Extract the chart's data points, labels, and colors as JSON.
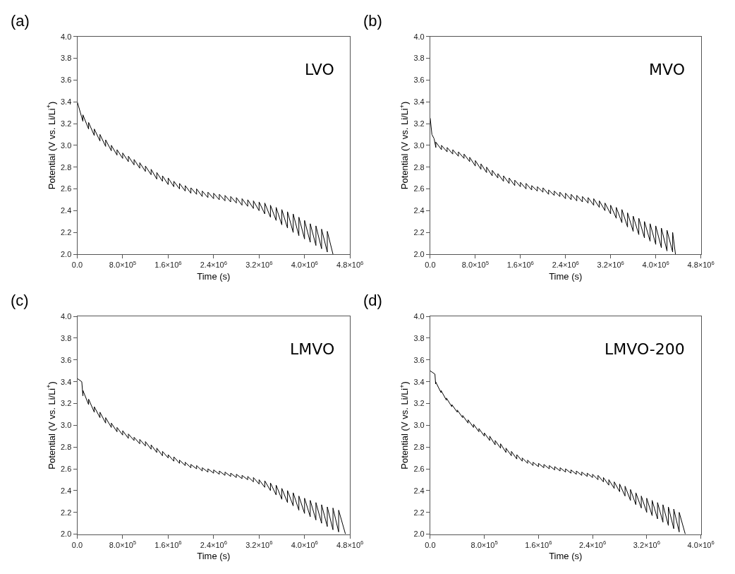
{
  "chart_data": [
    {
      "type": "line",
      "title": "(a)",
      "xlabel": "Time (s)",
      "ylabel": "Potential (V vs. Li/Li$^{+}$)",
      "xlim": [
        0,
        4800000
      ],
      "ylim": [
        2.0,
        4.0
      ],
      "xticks": [
        {
          "value": 0,
          "label": "0.0"
        },
        {
          "value": 800000,
          "label": "8.0×10$^{5}$"
        },
        {
          "value": 1600000,
          "label": "1.6×10$^{6}$"
        },
        {
          "value": 2400000,
          "label": "2.4×10$^{6}$"
        },
        {
          "value": 3200000,
          "label": "3.2×10$^{6}$"
        },
        {
          "value": 4000000,
          "label": "4.0×10$^{6}$"
        },
        {
          "value": 4800000,
          "label": "4.8×10$^{6}$"
        }
      ],
      "yticks": [
        {
          "value": 2.0,
          "label": "2.0"
        },
        2.2,
        2.4,
        2.6,
        2.8,
        {
          "value": 3.0,
          "label": "3.0"
        },
        3.2,
        3.4,
        3.6,
        3.8,
        {
          "value": 4.0,
          "label": "4.0"
        }
      ],
      "series": [
        {
          "name": "LVO",
          "color": "#000000",
          "x": [
            0,
            100000.0,
            100000.0,
            200000.0,
            200000.0,
            300000.0,
            300000.0,
            400000.0,
            400000.0,
            500000.0,
            500000.0,
            600000.0,
            600000.0,
            700000.0,
            700000.0,
            800000.0,
            800000.0,
            900000.0,
            900000.0,
            1000000.0,
            1000000.0,
            1100000.0,
            1100000.0,
            1200000.0,
            1200000.0,
            1300000.0,
            1300000.0,
            1400000.0,
            1400000.0,
            1500000.0,
            1500000.0,
            1600000.0,
            1600000.0,
            1700000.0,
            1700000.0,
            1800000.0,
            1800000.0,
            1900000.0,
            1900000.0,
            2000000.0,
            2000000.0,
            2100000.0,
            2100000.0,
            2200000.0,
            2200000.0,
            2300000.0,
            2300000.0,
            2400000.0,
            2400000.0,
            2500000.0,
            2500000.0,
            2600000.0,
            2600000.0,
            2700000.0,
            2700000.0,
            2800000.0,
            2800000.0,
            2900000.0,
            2900000.0,
            3000000.0,
            3000000.0,
            3100000.0,
            3100000.0,
            3200000.0,
            3200000.0,
            3300000.0,
            3300000.0,
            3400000.0,
            3400000.0,
            3500000.0,
            3500000.0,
            3600000.0,
            3600000.0,
            3700000.0,
            3700000.0,
            3800000.0,
            3800000.0,
            3900000.0,
            3900000.0,
            4000000.0,
            4000000.0,
            4100000.0,
            4100000.0,
            4200000.0,
            4200000.0,
            4300000.0,
            4300000.0,
            4400000.0,
            4400000.0,
            4500000.0
          ],
          "values": [
            3.4,
            3.22,
            3.28,
            3.15,
            3.21,
            3.09,
            3.15,
            3.04,
            3.1,
            2.99,
            3.05,
            2.95,
            3.0,
            2.91,
            2.96,
            2.88,
            2.93,
            2.85,
            2.9,
            2.82,
            2.87,
            2.79,
            2.84,
            2.76,
            2.81,
            2.73,
            2.78,
            2.69,
            2.75,
            2.67,
            2.72,
            2.64,
            2.7,
            2.62,
            2.67,
            2.6,
            2.65,
            2.58,
            2.63,
            2.56,
            2.61,
            2.55,
            2.6,
            2.53,
            2.58,
            2.52,
            2.57,
            2.51,
            2.56,
            2.5,
            2.55,
            2.49,
            2.54,
            2.48,
            2.53,
            2.47,
            2.52,
            2.45,
            2.51,
            2.44,
            2.5,
            2.42,
            2.49,
            2.4,
            2.48,
            2.37,
            2.47,
            2.34,
            2.45,
            2.31,
            2.43,
            2.27,
            2.41,
            2.24,
            2.39,
            2.2,
            2.37,
            2.17,
            2.34,
            2.14,
            2.31,
            2.11,
            2.28,
            2.08,
            2.26,
            2.05,
            2.23,
            2.02,
            2.21,
            2.0
          ]
        }
      ]
    },
    {
      "type": "line",
      "title": "(b)",
      "xlabel": "Time (s)",
      "ylabel": "Potential (V vs. Li/Li$^{+}$)",
      "xlim": [
        0,
        4800000
      ],
      "ylim": [
        2.0,
        4.0
      ],
      "xticks": [
        {
          "value": 0,
          "label": "0.0"
        },
        {
          "value": 800000,
          "label": "8.0×10$^{5}$"
        },
        {
          "value": 1600000,
          "label": "1.6×10$^{6}$"
        },
        {
          "value": 2400000,
          "label": "2.4×10$^{6}$"
        },
        {
          "value": 3200000,
          "label": "3.2×10$^{6}$"
        },
        {
          "value": 4000000,
          "label": "4.0×10$^{6}$"
        },
        {
          "value": 4800000,
          "label": "4.8×10$^{6}$"
        }
      ],
      "yticks": [
        {
          "value": 2.0,
          "label": "2.0"
        },
        2.2,
        2.4,
        2.6,
        2.8,
        {
          "value": 3.0,
          "label": "3.0"
        },
        3.2,
        3.4,
        3.6,
        3.8,
        {
          "value": 4.0,
          "label": "4.0"
        }
      ],
      "series": [
        {
          "name": "MVO",
          "color": "#000000",
          "x": [
            0,
            30000.0,
            70000.0,
            100000.0,
            100000.0,
            200000.0,
            200000.0,
            300000.0,
            300000.0,
            400000.0,
            400000.0,
            500000.0,
            500000.0,
            600000.0,
            600000.0,
            700000.0,
            700000.0,
            800000.0,
            800000.0,
            900000.0,
            900000.0,
            1000000.0,
            1000000.0,
            1100000.0,
            1100000.0,
            1200000.0,
            1200000.0,
            1300000.0,
            1300000.0,
            1400000.0,
            1400000.0,
            1500000.0,
            1500000.0,
            1600000.0,
            1600000.0,
            1700000.0,
            1700000.0,
            1800000.0,
            1800000.0,
            1900000.0,
            1900000.0,
            2000000.0,
            2000000.0,
            2100000.0,
            2100000.0,
            2200000.0,
            2200000.0,
            2300000.0,
            2300000.0,
            2400000.0,
            2400000.0,
            2500000.0,
            2500000.0,
            2600000.0,
            2600000.0,
            2700000.0,
            2700000.0,
            2800000.0,
            2800000.0,
            2900000.0,
            2900000.0,
            3000000.0,
            3000000.0,
            3100000.0,
            3100000.0,
            3200000.0,
            3200000.0,
            3300000.0,
            3300000.0,
            3400000.0,
            3400000.0,
            3500000.0,
            3500000.0,
            3600000.0,
            3600000.0,
            3700000.0,
            3700000.0,
            3800000.0,
            3800000.0,
            3900000.0,
            3900000.0,
            4000000.0,
            4000000.0,
            4100000.0,
            4100000.0,
            4200000.0,
            4200000.0,
            4300000.0,
            4300000.0,
            4350000.0
          ],
          "values": [
            3.25,
            3.1,
            3.06,
            2.98,
            3.03,
            2.96,
            3.0,
            2.94,
            2.98,
            2.92,
            2.96,
            2.9,
            2.94,
            2.88,
            2.92,
            2.85,
            2.89,
            2.81,
            2.86,
            2.78,
            2.83,
            2.75,
            2.8,
            2.72,
            2.77,
            2.7,
            2.74,
            2.67,
            2.72,
            2.65,
            2.7,
            2.63,
            2.68,
            2.62,
            2.66,
            2.6,
            2.65,
            2.59,
            2.63,
            2.58,
            2.62,
            2.57,
            2.61,
            2.55,
            2.59,
            2.54,
            2.58,
            2.53,
            2.57,
            2.51,
            2.56,
            2.5,
            2.55,
            2.49,
            2.54,
            2.48,
            2.53,
            2.47,
            2.52,
            2.45,
            2.51,
            2.43,
            2.49,
            2.4,
            2.47,
            2.37,
            2.45,
            2.33,
            2.43,
            2.29,
            2.41,
            2.25,
            2.38,
            2.21,
            2.35,
            2.18,
            2.33,
            2.15,
            2.3,
            2.12,
            2.28,
            2.09,
            2.26,
            2.06,
            2.24,
            2.03,
            2.22,
            2.02,
            2.2,
            2.0
          ]
        }
      ]
    },
    {
      "type": "line",
      "title": "(c)",
      "xlabel": "Time (s)",
      "ylabel": "Potential (V vs. Li/Li$^{+}$)",
      "xlim": [
        0,
        4800000
      ],
      "ylim": [
        2.0,
        4.0
      ],
      "xticks": [
        {
          "value": 0,
          "label": "0.0"
        },
        {
          "value": 800000,
          "label": "8.0×10$^{5}$"
        },
        {
          "value": 1600000,
          "label": "1.6×10$^{6}$"
        },
        {
          "value": 2400000,
          "label": "2.4×10$^{6}$"
        },
        {
          "value": 3200000,
          "label": "3.2×10$^{6}$"
        },
        {
          "value": 4000000,
          "label": "4.0×10$^{6}$"
        },
        {
          "value": 4800000,
          "label": "4.8×10$^{6}$"
        }
      ],
      "yticks": [
        {
          "value": 2.0,
          "label": "2.0"
        },
        2.2,
        2.4,
        2.6,
        2.8,
        {
          "value": 3.0,
          "label": "3.0"
        },
        3.2,
        3.4,
        3.6,
        3.8,
        {
          "value": 4.0,
          "label": "4.0"
        }
      ],
      "series": [
        {
          "name": "LMVO",
          "color": "#000000",
          "x": [
            0,
            80000.0,
            100000.0,
            100000.0,
            200000.0,
            200000.0,
            300000.0,
            300000.0,
            400000.0,
            400000.0,
            500000.0,
            500000.0,
            600000.0,
            600000.0,
            700000.0,
            700000.0,
            800000.0,
            800000.0,
            900000.0,
            900000.0,
            1000000.0,
            1000000.0,
            1100000.0,
            1100000.0,
            1200000.0,
            1200000.0,
            1300000.0,
            1300000.0,
            1400000.0,
            1400000.0,
            1500000.0,
            1500000.0,
            1600000.0,
            1600000.0,
            1700000.0,
            1700000.0,
            1800000.0,
            1800000.0,
            1900000.0,
            1900000.0,
            2000000.0,
            2000000.0,
            2100000.0,
            2100000.0,
            2200000.0,
            2200000.0,
            2300000.0,
            2300000.0,
            2400000.0,
            2400000.0,
            2500000.0,
            2500000.0,
            2600000.0,
            2600000.0,
            2700000.0,
            2700000.0,
            2800000.0,
            2800000.0,
            2900000.0,
            2900000.0,
            3000000.0,
            3000000.0,
            3100000.0,
            3100000.0,
            3200000.0,
            3200000.0,
            3300000.0,
            3300000.0,
            3400000.0,
            3400000.0,
            3500000.0,
            3500000.0,
            3600000.0,
            3600000.0,
            3700000.0,
            3700000.0,
            3800000.0,
            3800000.0,
            3900000.0,
            3900000.0,
            4000000.0,
            4000000.0,
            4100000.0,
            4100000.0,
            4200000.0,
            4200000.0,
            4300000.0,
            4300000.0,
            4400000.0,
            4400000.0,
            4500000.0,
            4500000.0,
            4600000.0,
            4600000.0,
            4720000.0
          ],
          "values": [
            3.43,
            3.4,
            3.27,
            3.32,
            3.19,
            3.24,
            3.12,
            3.17,
            3.07,
            3.12,
            3.02,
            3.07,
            2.98,
            3.02,
            2.94,
            2.98,
            2.91,
            2.95,
            2.88,
            2.92,
            2.86,
            2.89,
            2.83,
            2.87,
            2.81,
            2.85,
            2.78,
            2.82,
            2.75,
            2.79,
            2.72,
            2.76,
            2.7,
            2.73,
            2.67,
            2.71,
            2.65,
            2.68,
            2.63,
            2.66,
            2.61,
            2.64,
            2.6,
            2.63,
            2.58,
            2.61,
            2.57,
            2.6,
            2.56,
            2.59,
            2.55,
            2.58,
            2.54,
            2.57,
            2.53,
            2.56,
            2.52,
            2.55,
            2.51,
            2.54,
            2.5,
            2.53,
            2.48,
            2.52,
            2.46,
            2.5,
            2.43,
            2.49,
            2.4,
            2.47,
            2.36,
            2.45,
            2.32,
            2.42,
            2.29,
            2.4,
            2.26,
            2.38,
            2.22,
            2.35,
            2.19,
            2.33,
            2.16,
            2.31,
            2.13,
            2.29,
            2.1,
            2.27,
            2.07,
            2.25,
            2.04,
            2.24,
            2.02,
            2.22,
            2.0
          ]
        }
      ]
    },
    {
      "type": "line",
      "title": "(d)",
      "xlabel": "Time (s)",
      "ylabel": "Potential (V vs. Li/Li$^{+}$)",
      "xlim": [
        0,
        4000000
      ],
      "ylim": [
        2.0,
        4.0
      ],
      "xticks": [
        {
          "value": 0,
          "label": "0.0"
        },
        {
          "value": 800000,
          "label": "8.0×10$^{5}$"
        },
        {
          "value": 1600000,
          "label": "1.6×10$^{6}$"
        },
        {
          "value": 2400000,
          "label": "2.4×10$^{6}$"
        },
        {
          "value": 3200000,
          "label": "3.2×10$^{6}$"
        },
        {
          "value": 4000000,
          "label": "4.0×10$^{6}$"
        }
      ],
      "yticks": [
        {
          "value": 2.0,
          "label": "2.0"
        },
        2.2,
        2.4,
        2.6,
        2.8,
        {
          "value": 3.0,
          "label": "3.0"
        },
        3.2,
        3.4,
        3.6,
        3.8,
        {
          "value": 4.0,
          "label": "4.0"
        }
      ],
      "series": [
        {
          "name": "LMVO-200",
          "color": "#000000",
          "x": [
            0,
            70000.0,
            80000.0,
            80000.0,
            160000.0,
            160000.0,
            240000.0,
            240000.0,
            320000.0,
            320000.0,
            400000.0,
            400000.0,
            480000.0,
            480000.0,
            560000.0,
            560000.0,
            640000.0,
            640000.0,
            720000.0,
            720000.0,
            800000.0,
            800000.0,
            880000.0,
            880000.0,
            960000.0,
            960000.0,
            1040000.0,
            1040000.0,
            1120000.0,
            1120000.0,
            1200000.0,
            1200000.0,
            1280000.0,
            1280000.0,
            1360000.0,
            1360000.0,
            1440000.0,
            1440000.0,
            1520000.0,
            1520000.0,
            1600000.0,
            1600000.0,
            1680000.0,
            1680000.0,
            1760000.0,
            1760000.0,
            1840000.0,
            1840000.0,
            1920000.0,
            1920000.0,
            2000000.0,
            2000000.0,
            2080000.0,
            2080000.0,
            2160000.0,
            2160000.0,
            2240000.0,
            2240000.0,
            2320000.0,
            2320000.0,
            2400000.0,
            2400000.0,
            2480000.0,
            2480000.0,
            2560000.0,
            2560000.0,
            2640000.0,
            2640000.0,
            2720000.0,
            2720000.0,
            2800000.0,
            2800000.0,
            2880000.0,
            2880000.0,
            2960000.0,
            2960000.0,
            3040000.0,
            3040000.0,
            3120000.0,
            3120000.0,
            3200000.0,
            3200000.0,
            3280000.0,
            3280000.0,
            3360000.0,
            3360000.0,
            3440000.0,
            3440000.0,
            3520000.0,
            3520000.0,
            3600000.0,
            3600000.0,
            3680000.0,
            3680000.0,
            3770000.0
          ],
          "values": [
            3.5,
            3.47,
            3.38,
            3.4,
            3.3,
            3.32,
            3.23,
            3.25,
            3.17,
            3.19,
            3.12,
            3.14,
            3.07,
            3.09,
            3.02,
            3.05,
            2.98,
            3.01,
            2.94,
            2.97,
            2.9,
            2.93,
            2.86,
            2.9,
            2.82,
            2.86,
            2.79,
            2.83,
            2.75,
            2.79,
            2.72,
            2.76,
            2.69,
            2.73,
            2.67,
            2.7,
            2.65,
            2.68,
            2.63,
            2.66,
            2.62,
            2.65,
            2.61,
            2.64,
            2.6,
            2.63,
            2.59,
            2.62,
            2.58,
            2.61,
            2.57,
            2.6,
            2.56,
            2.59,
            2.55,
            2.58,
            2.54,
            2.57,
            2.53,
            2.56,
            2.52,
            2.55,
            2.5,
            2.54,
            2.48,
            2.52,
            2.45,
            2.5,
            2.42,
            2.48,
            2.39,
            2.46,
            2.35,
            2.44,
            2.31,
            2.41,
            2.27,
            2.38,
            2.24,
            2.35,
            2.2,
            2.33,
            2.17,
            2.31,
            2.14,
            2.29,
            2.11,
            2.27,
            2.08,
            2.25,
            2.05,
            2.23,
            2.02,
            2.2,
            2.0
          ]
        }
      ]
    }
  ]
}
